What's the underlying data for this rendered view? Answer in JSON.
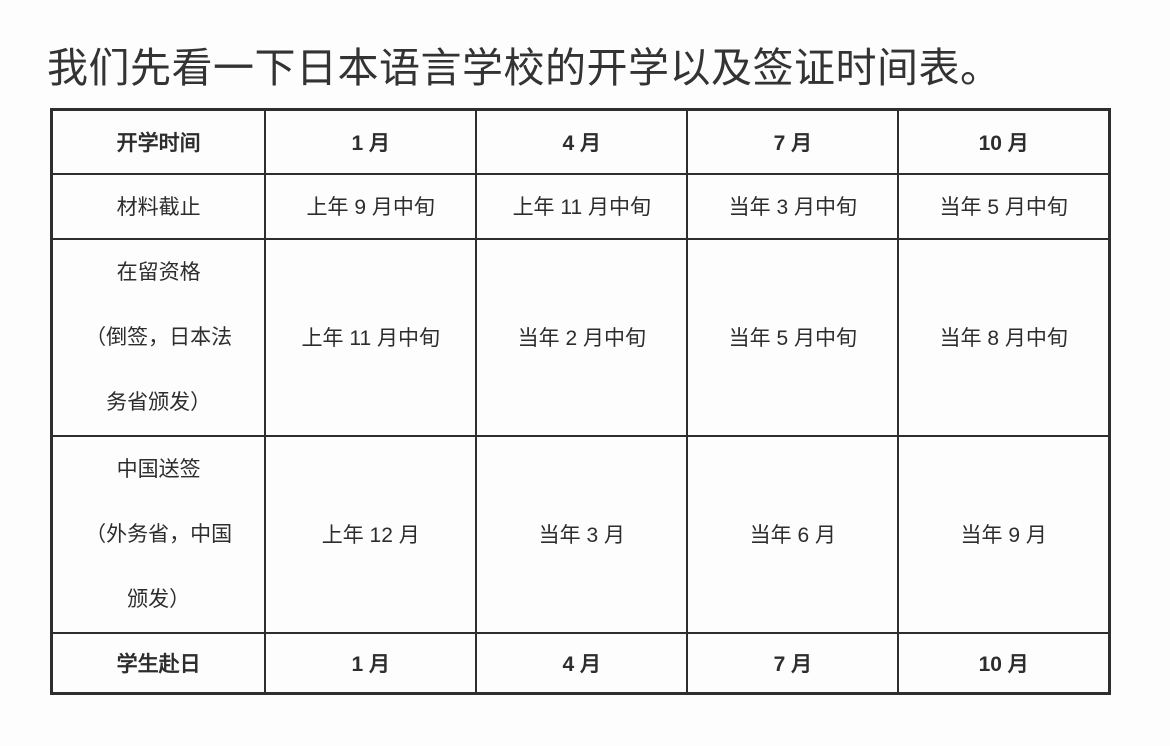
{
  "title": "我们先看一下日本语言学校的开学以及签证时间表。",
  "colors": {
    "accent_red": "#e03c3c",
    "border": "#2e2e2e",
    "text": "#2d2d2d",
    "background": "#fdfdfd"
  },
  "table": {
    "columns": [
      "开学时间",
      "1 月",
      "4 月",
      "7 月",
      "10 月"
    ],
    "rows": [
      {
        "label": "材料截止",
        "values": [
          "上年 9 月中旬",
          "上年 11 月中旬",
          "当年 3 月中旬",
          "当年 5 月中旬"
        ]
      },
      {
        "label": "在留资格\n（倒签，日本法\n务省颁发）",
        "values": [
          "上年 11 月中旬",
          "当年 2 月中旬",
          "当年 5 月中旬",
          "当年 8 月中旬"
        ]
      },
      {
        "label": "中国送签\n（外务省，中国\n颁发）",
        "values": [
          "上年 12 月",
          "当年 3 月",
          "当年 6 月",
          "当年 9 月"
        ]
      },
      {
        "label": "学生赴日",
        "values": [
          "1 月",
          "4 月",
          "7 月",
          "10 月"
        ]
      }
    ]
  }
}
